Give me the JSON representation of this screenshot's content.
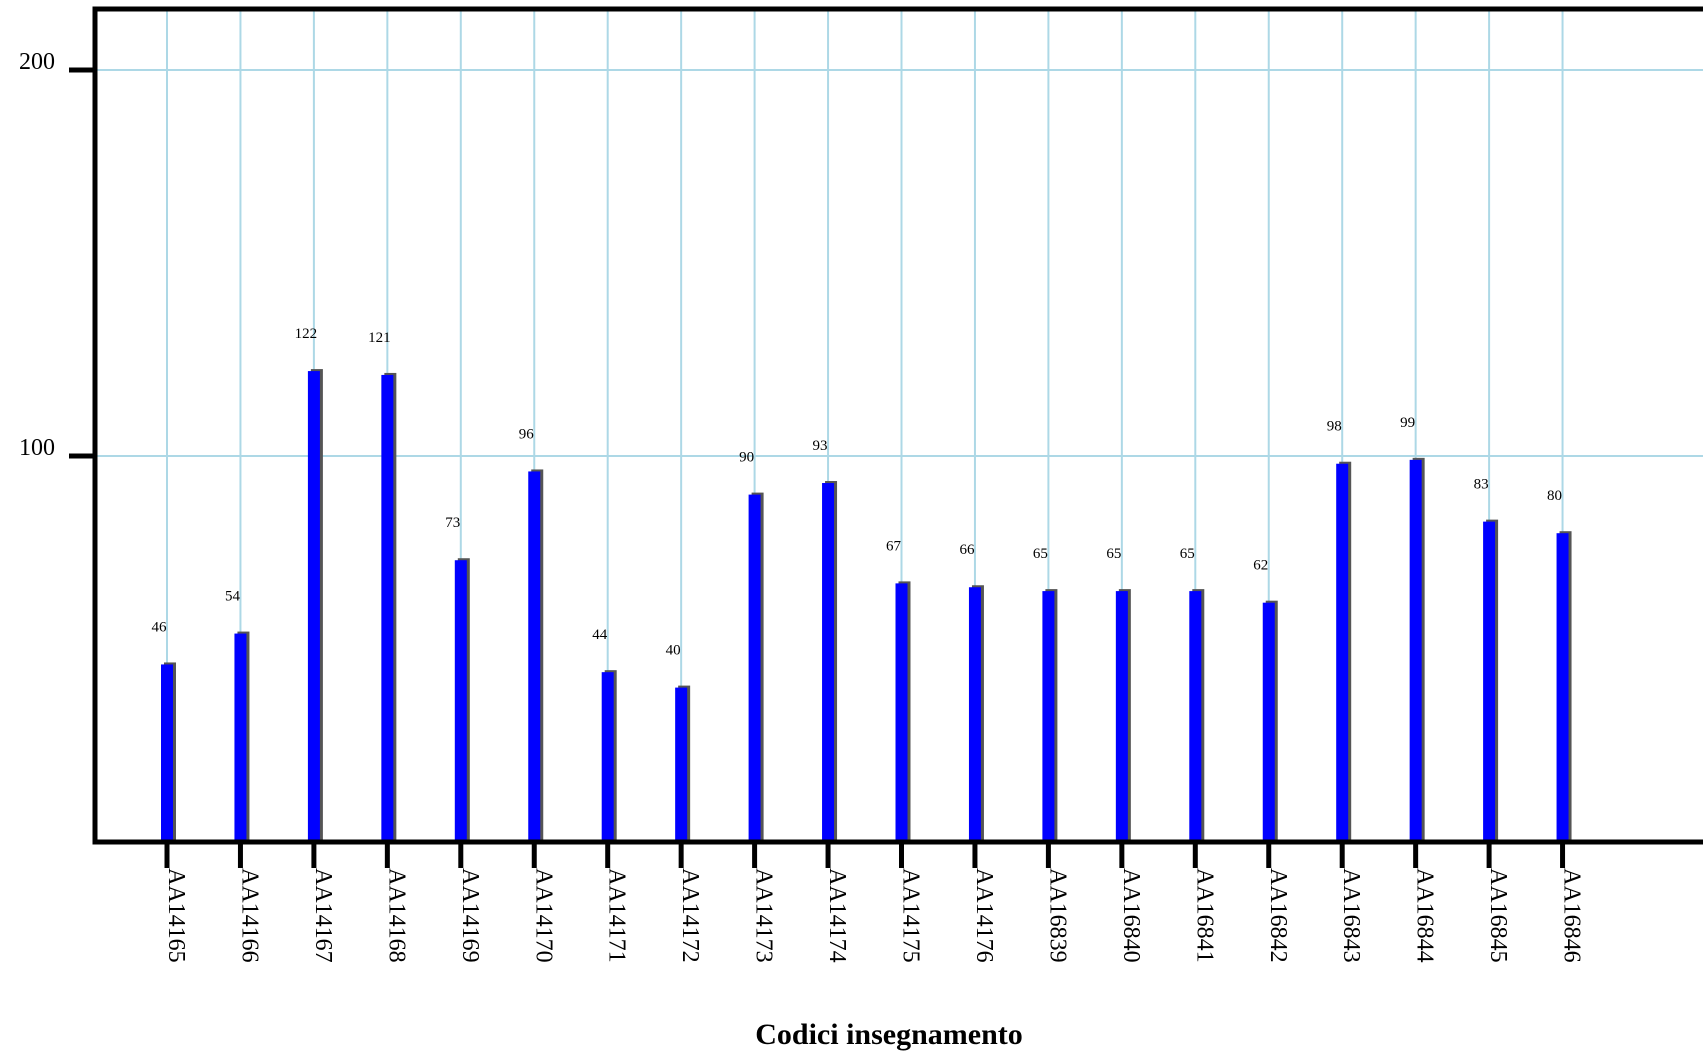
{
  "chart_data": {
    "type": "bar",
    "title": "",
    "xlabel": "Codici insegnamento",
    "ylabel": "",
    "ylim": [
      0,
      215
    ],
    "yticks": [
      100,
      200
    ],
    "grid": true,
    "colors": {
      "bar": "#0000ff",
      "bar_shadow": "#555555",
      "grid": "#add8e6",
      "axis": "#000000"
    },
    "categories": [
      "AA14165",
      "AA14166",
      "AA14167",
      "AA14168",
      "AA14169",
      "AA14170",
      "AA14171",
      "AA14172",
      "AA14173",
      "AA14174",
      "AA14175",
      "AA14176",
      "AA16839",
      "AA16840",
      "AA16841",
      "AA16842",
      "AA16843",
      "AA16844",
      "AA16845",
      "AA16846"
    ],
    "values": [
      46,
      54,
      122,
      121,
      73,
      96,
      44,
      40,
      90,
      93,
      67,
      66,
      65,
      65,
      65,
      62,
      98,
      99,
      83,
      80
    ],
    "value_labels": [
      "46",
      "54",
      "122",
      "121",
      "73",
      "96",
      "44",
      "40",
      "90",
      "93",
      "67",
      "66",
      "65",
      "65",
      "65",
      "62",
      "98",
      "99",
      "83",
      "80"
    ]
  }
}
